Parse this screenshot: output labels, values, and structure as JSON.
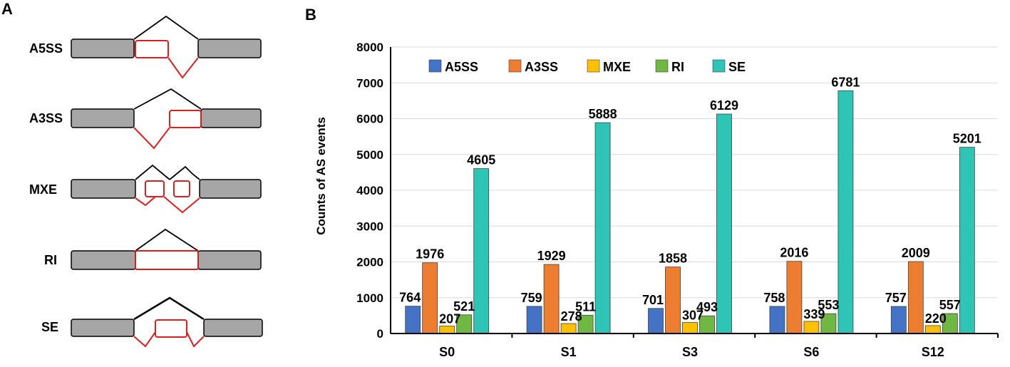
{
  "panel_a": {
    "label": "A",
    "events": [
      "A5SS",
      "A3SS",
      "MXE",
      "RI",
      "SE"
    ]
  },
  "chart_data": {
    "panel_label": "B",
    "type": "bar",
    "categories": [
      "S0",
      "S1",
      "S3",
      "S6",
      "S12"
    ],
    "ylabel": "Counts of AS events",
    "ylim": [
      0,
      8000
    ],
    "yticks": [
      0,
      1000,
      2000,
      3000,
      4000,
      5000,
      6000,
      7000,
      8000
    ],
    "grid": true,
    "legend_position": "top-left",
    "series": [
      {
        "name": "A5SS",
        "color": "#4472c4",
        "values": [
          764,
          759,
          701,
          758,
          757
        ]
      },
      {
        "name": "A3SS",
        "color": "#ed7d31",
        "values": [
          1976,
          1929,
          1858,
          2016,
          2009
        ]
      },
      {
        "name": "MXE",
        "color": "#ffc000",
        "values": [
          207,
          278,
          307,
          339,
          220
        ]
      },
      {
        "name": "RI",
        "color": "#70b843",
        "values": [
          521,
          511,
          493,
          553,
          557
        ]
      },
      {
        "name": "SE",
        "color": "#2ec4b6",
        "values": [
          4605,
          5888,
          6129,
          6781,
          5201
        ]
      }
    ]
  }
}
